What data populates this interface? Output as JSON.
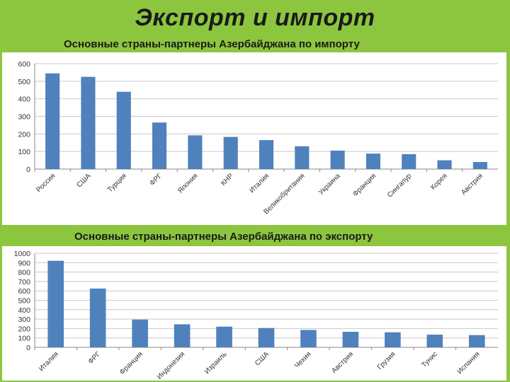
{
  "slide": {
    "title": "Экспорт и импорт"
  },
  "chart_data": [
    {
      "type": "bar",
      "title": "Основные страны-партнеры Азербайджана по импорту",
      "categories": [
        "Россия",
        "США",
        "Турция",
        "ФРГ",
        "Япония",
        "КНР",
        "Италия",
        "Великобритания",
        "Украина",
        "Франция",
        "Сингапур",
        "Корея",
        "Австрия"
      ],
      "values": [
        545,
        525,
        440,
        265,
        192,
        183,
        165,
        130,
        105,
        88,
        85,
        50,
        40
      ],
      "yticks": [
        "0",
        "100",
        "200",
        "300",
        "400",
        "500",
        "600"
      ],
      "ylim": [
        0,
        600
      ],
      "grid": true,
      "bar_color": "#4f81bd"
    },
    {
      "type": "bar",
      "title": "Основные страны-партнеры Азербайджана по экспорту",
      "categories": [
        "Италия",
        "ФРГ",
        "Франция",
        "Индонезия",
        "Израиль",
        "США",
        "Чехия",
        "Австрия",
        "Грузия",
        "Тунис",
        "Испания"
      ],
      "values": [
        920,
        625,
        295,
        245,
        220,
        205,
        185,
        165,
        160,
        135,
        130
      ],
      "yticks": [
        "0",
        "100",
        "200",
        "300",
        "400",
        "500",
        "600",
        "700",
        "800",
        "900",
        "1000"
      ],
      "ylim": [
        0,
        1000
      ],
      "grid": true,
      "bar_color": "#4f81bd"
    }
  ]
}
